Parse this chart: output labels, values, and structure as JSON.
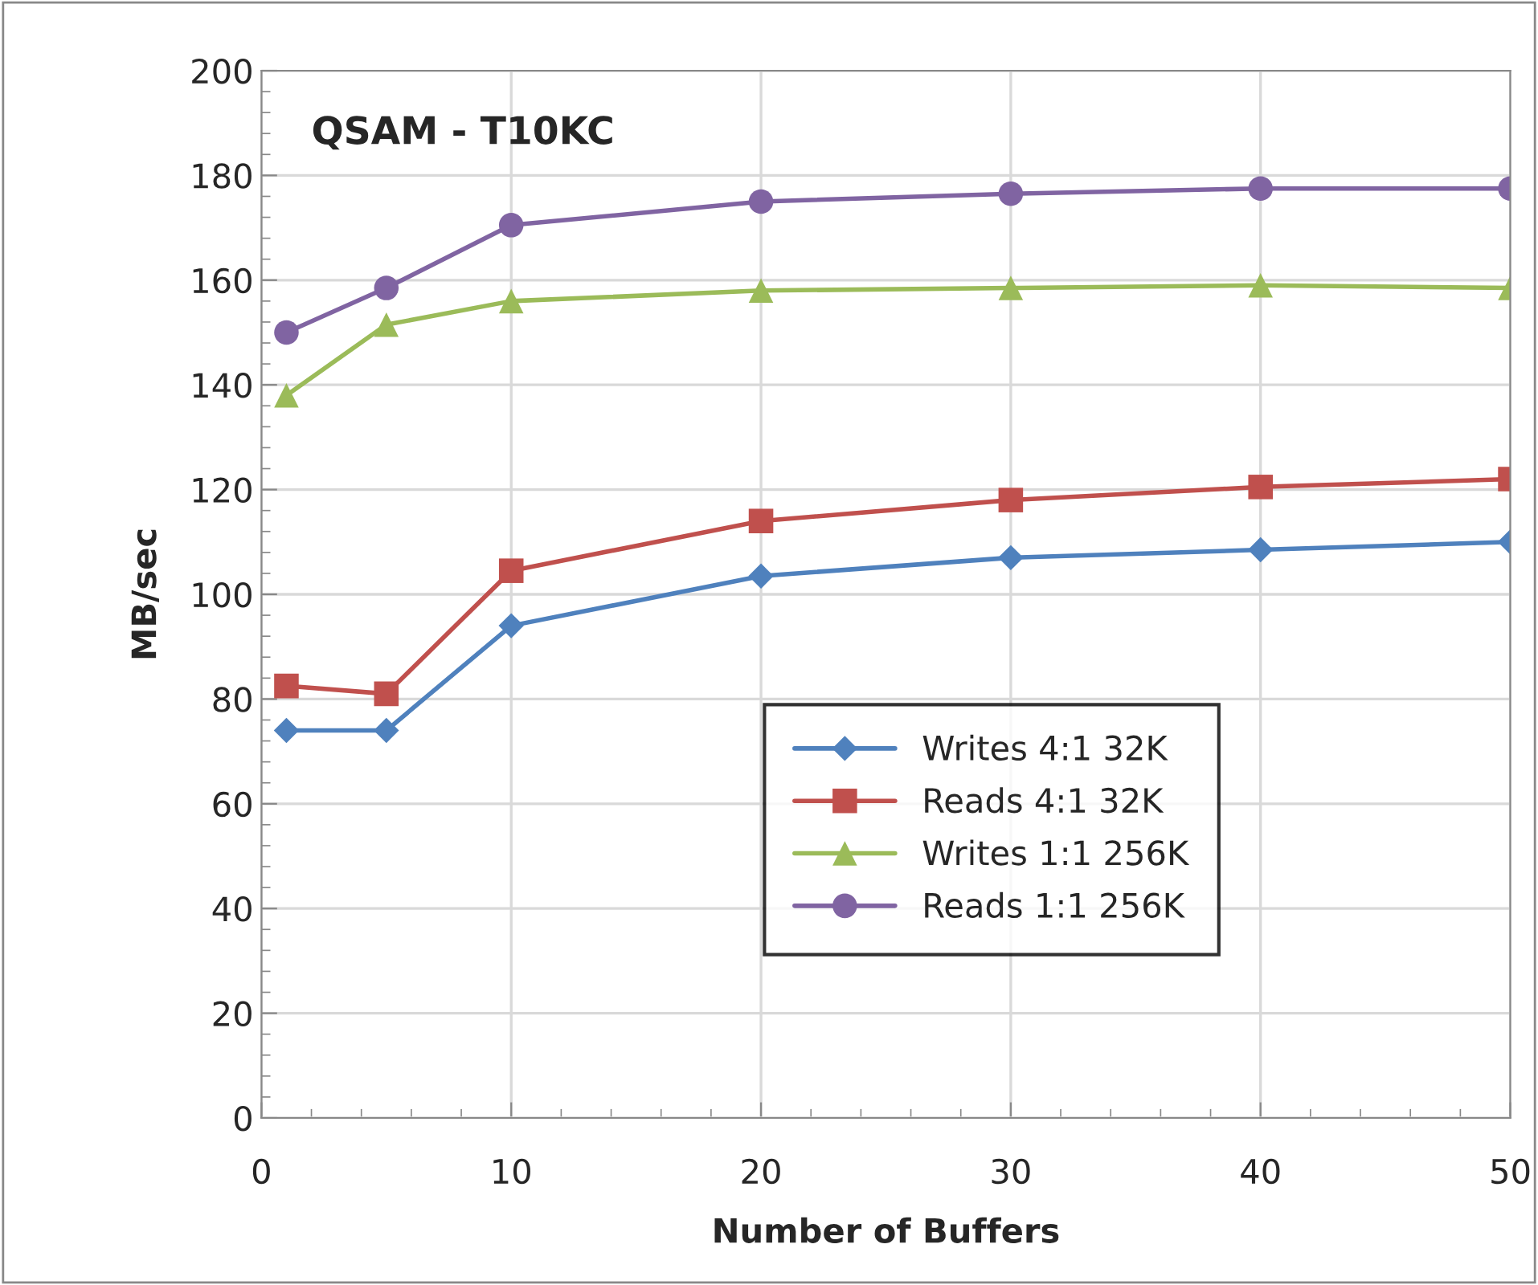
{
  "chart_data": {
    "type": "line",
    "title": "QSAM - T10KC",
    "xlabel": "Number of Buffers",
    "ylabel": "MB/sec",
    "x": [
      1,
      5,
      10,
      20,
      30,
      40,
      50
    ],
    "series": [
      {
        "name": "Writes 4:1 32K",
        "color": "#4f81bd",
        "marker": "diamond",
        "values": [
          74,
          74,
          94,
          103.5,
          107,
          108.5,
          110
        ]
      },
      {
        "name": "Reads 4:1 32K",
        "color": "#c0504d",
        "marker": "square",
        "values": [
          82.5,
          81,
          104.5,
          114,
          118,
          120.5,
          122
        ]
      },
      {
        "name": "Writes 1:1 256K",
        "color": "#9bbb59",
        "marker": "triangle",
        "values": [
          138,
          151.5,
          156,
          158,
          158.5,
          159,
          158.5
        ]
      },
      {
        "name": "Reads 1:1 256K",
        "color": "#8064a2",
        "marker": "circle",
        "values": [
          150,
          158.5,
          170.5,
          175,
          176.5,
          177.5,
          177.5
        ]
      }
    ],
    "xlim": [
      0,
      50
    ],
    "xticks": [
      0,
      10,
      20,
      30,
      40,
      50
    ],
    "ylim": [
      0,
      200
    ],
    "yticks": [
      0,
      20,
      40,
      60,
      80,
      100,
      120,
      140,
      160,
      180,
      200
    ],
    "grid": true,
    "legend": "bottom right",
    "line_style": "solid"
  }
}
